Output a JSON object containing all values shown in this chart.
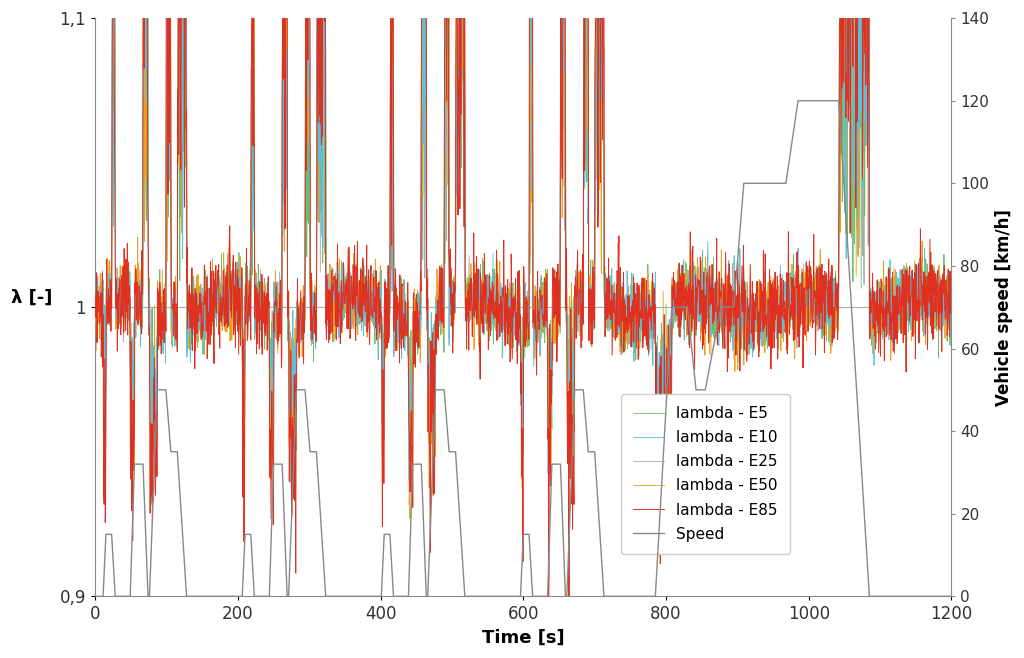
{
  "title": "",
  "xlabel": "Time [s]",
  "ylabel_left": "λ [-]",
  "ylabel_right": "Vehicle speed [km/h]",
  "xlim": [
    0,
    1200
  ],
  "ylim_left": [
    0.9,
    1.1
  ],
  "ylim_right": [
    0,
    140
  ],
  "yticks_left": [
    0.9,
    1.0,
    1.1
  ],
  "ytick_labels_left": [
    "0,9",
    "1",
    "1,1"
  ],
  "yticks_right": [
    0,
    20,
    40,
    60,
    80,
    100,
    120,
    140
  ],
  "xticks": [
    0,
    200,
    400,
    600,
    800,
    1000,
    1200
  ],
  "colors": {
    "E5": "#6abf6a",
    "E10": "#5bc0de",
    "E25": "#aaaaaa",
    "E50": "#e8a020",
    "E85": "#e03020",
    "Speed": "#888888"
  },
  "legend_labels": [
    "lambda - E5",
    "lambda - E10",
    "lambda - E25",
    "lambda - E50",
    "lambda - E85",
    "Speed"
  ],
  "grid_color": "#aaaaaa",
  "background_color": "#ffffff"
}
